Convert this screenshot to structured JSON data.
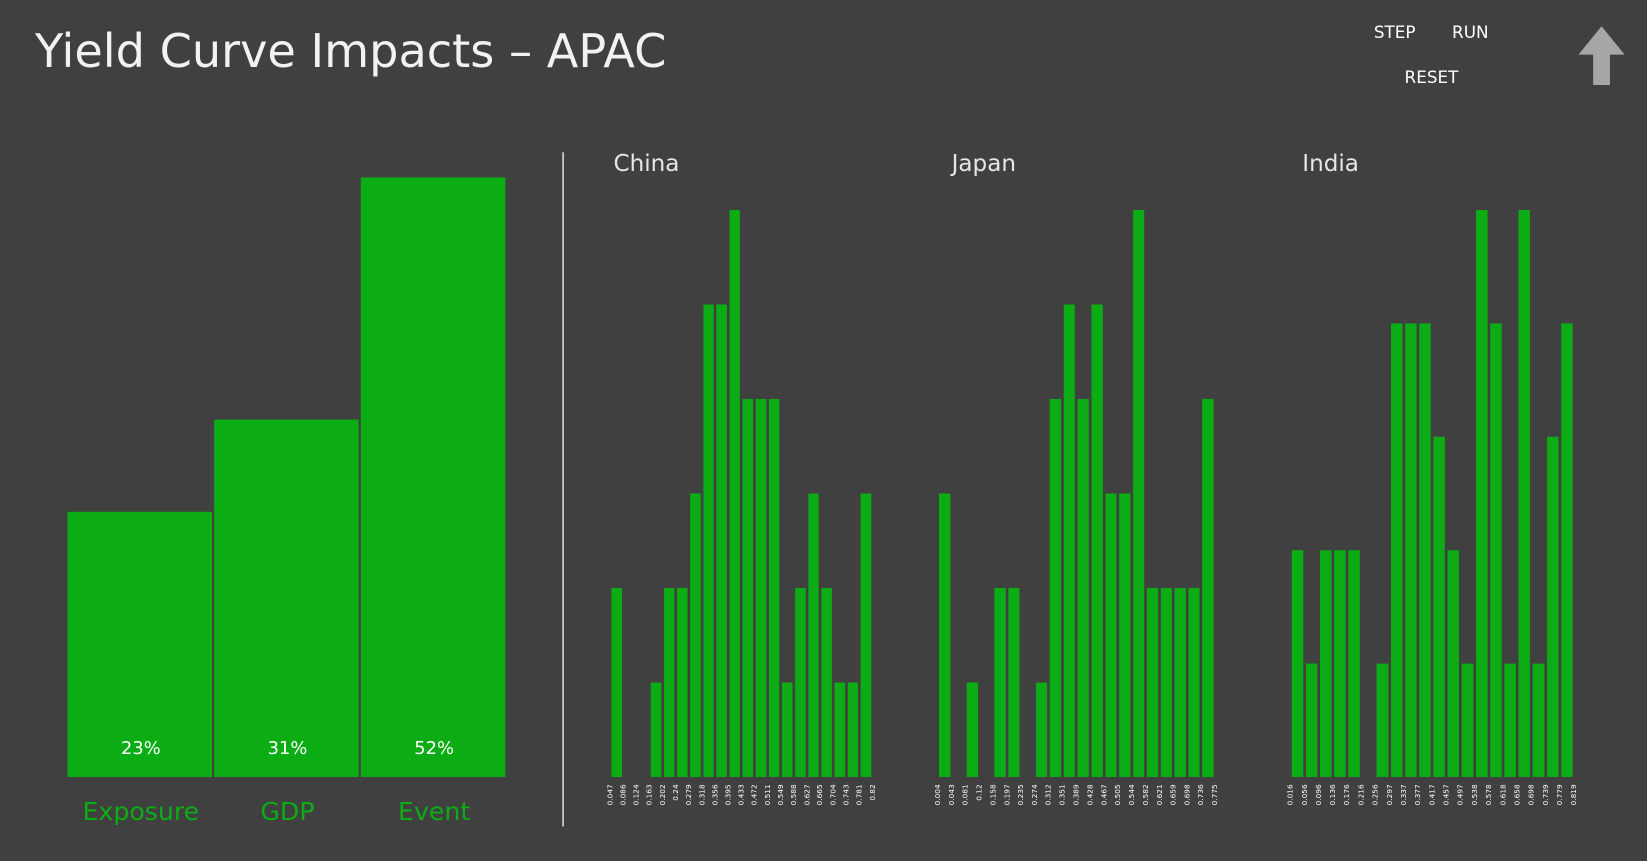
{
  "title": "Yield Curve Impacts – APAC",
  "controls": {
    "step": "STEP",
    "run": "RUN",
    "reset": "RESET"
  },
  "chart_data": [
    {
      "type": "bar",
      "categories": [
        "Exposure",
        "GDP",
        "Event"
      ],
      "values": [
        23,
        31,
        52
      ],
      "value_labels": [
        "23%",
        "31%",
        "52%"
      ],
      "color": "#0bac14"
    },
    {
      "type": "histogram",
      "title": "China",
      "color": "#0bac14",
      "bins": [
        0.047,
        0.086,
        0.124,
        0.163,
        0.202,
        0.24,
        0.279,
        0.318,
        0.356,
        0.395,
        0.433,
        0.472,
        0.511,
        0.549,
        0.588,
        0.627,
        0.665,
        0.704,
        0.743,
        0.781,
        0.82
      ],
      "values": [
        2,
        0,
        0,
        1,
        2,
        2,
        3,
        5,
        5,
        6,
        4,
        4,
        4,
        1,
        2,
        3,
        2,
        1,
        1,
        3
      ]
    },
    {
      "type": "histogram",
      "title": "Japan",
      "color": "#0bac14",
      "bins": [
        0.004,
        0.043,
        0.081,
        0.12,
        0.158,
        0.197,
        0.235,
        0.274,
        0.312,
        0.351,
        0.389,
        0.428,
        0.467,
        0.505,
        0.544,
        0.582,
        0.621,
        0.659,
        0.698,
        0.736,
        0.775
      ],
      "values": [
        3,
        0,
        1,
        0,
        2,
        2,
        0,
        1,
        4,
        5,
        4,
        5,
        3,
        3,
        6,
        2,
        2,
        2,
        2,
        4
      ]
    },
    {
      "type": "histogram",
      "title": "India",
      "color": "#0bac14",
      "bins": [
        0.016,
        0.056,
        0.096,
        0.136,
        0.176,
        0.216,
        0.256,
        0.297,
        0.337,
        0.377,
        0.417,
        0.457,
        0.497,
        0.538,
        0.578,
        0.618,
        0.658,
        0.698,
        0.739,
        0.779,
        0.819
      ],
      "values": [
        2,
        1,
        2,
        2,
        2,
        0,
        1,
        4,
        4,
        4,
        3,
        2,
        1,
        5,
        4,
        1,
        5,
        1,
        3,
        4
      ]
    }
  ]
}
